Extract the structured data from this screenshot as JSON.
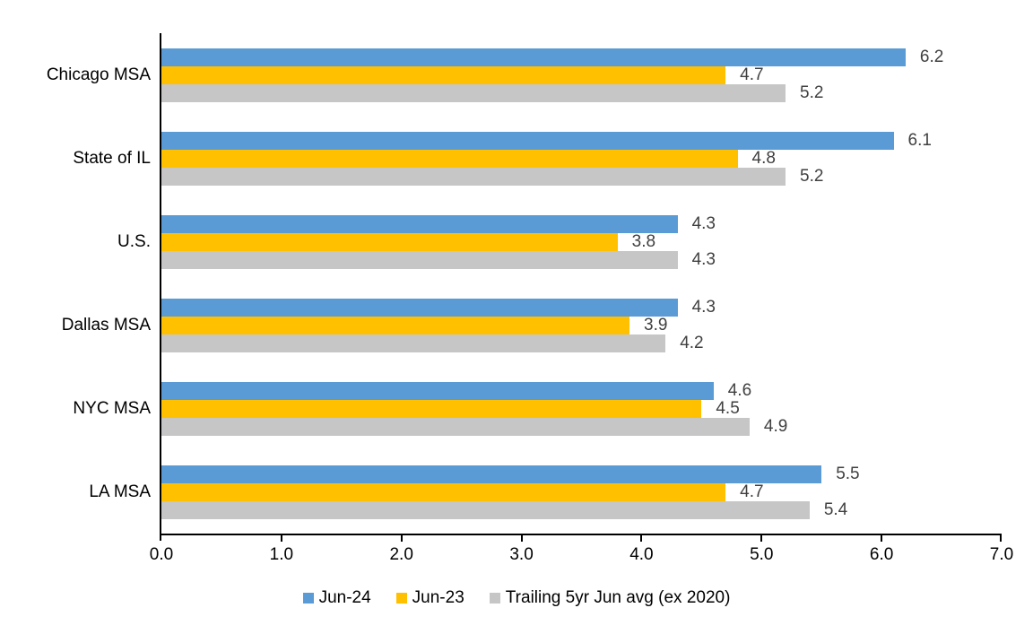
{
  "chart_data": {
    "type": "bar",
    "orientation": "horizontal",
    "title": "",
    "categories": [
      "Chicago MSA",
      "State of IL",
      "U.S.",
      "Dallas MSA",
      "NYC MSA",
      "LA MSA"
    ],
    "series": [
      {
        "name": "Jun-24",
        "color": "#5B9BD5",
        "values": [
          6.2,
          6.1,
          4.3,
          4.3,
          4.6,
          5.5
        ]
      },
      {
        "name": "Jun-23",
        "color": "#FFC000",
        "values": [
          4.7,
          4.8,
          3.8,
          3.9,
          4.5,
          4.7
        ]
      },
      {
        "name": "Trailing 5yr Jun avg (ex 2020)",
        "color": "#C6C6C6",
        "values": [
          5.2,
          5.2,
          4.3,
          4.2,
          4.9,
          5.4
        ]
      }
    ],
    "xlim": [
      0,
      7
    ],
    "x_tick_labels": [
      "0.0",
      "1.0",
      "2.0",
      "3.0",
      "4.0",
      "5.0",
      "6.0",
      "7.0"
    ],
    "data_labels": true,
    "data_label_format": "0.0",
    "grid": false,
    "legend_position": "bottom"
  },
  "colors": {
    "data_label": "#404040",
    "axis": "#000000",
    "text": "#000000",
    "background": "#FFFFFF"
  }
}
